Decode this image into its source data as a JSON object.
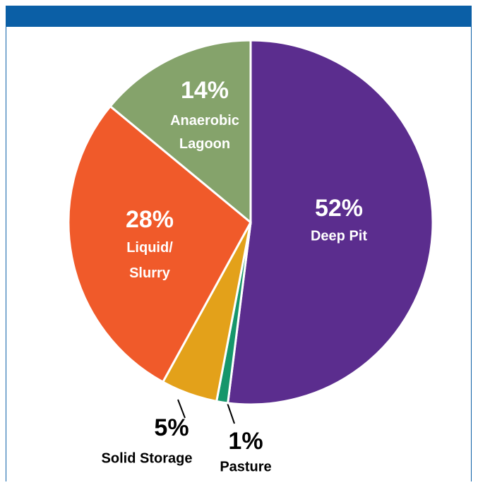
{
  "chart_data": {
    "type": "pie",
    "categories": [
      "Deep Pit",
      "Pasture",
      "Solid Storage",
      "Liquid/ Slurry",
      "Anaerobic Lagoon"
    ],
    "values": [
      52,
      1,
      5,
      28,
      14
    ],
    "value_labels": [
      "52%",
      "1%",
      "5%",
      "28%",
      "14%"
    ],
    "colors": [
      "#5b2d8e",
      "#16966b",
      "#e3a11a",
      "#f05a2a",
      "#85a36b"
    ]
  }
}
